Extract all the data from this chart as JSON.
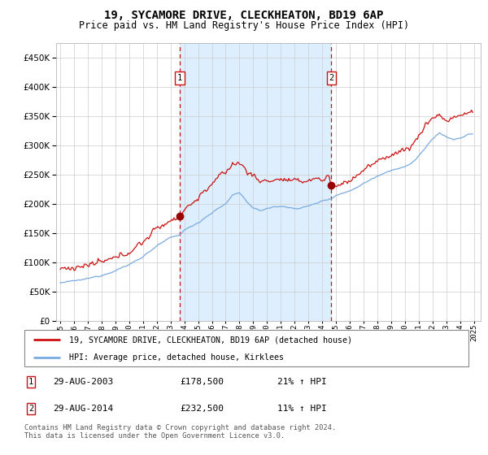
{
  "title": "19, SYCAMORE DRIVE, CLECKHEATON, BD19 6AP",
  "subtitle": "Price paid vs. HM Land Registry's House Price Index (HPI)",
  "legend_line1": "19, SYCAMORE DRIVE, CLECKHEATON, BD19 6AP (detached house)",
  "legend_line2": "HPI: Average price, detached house, Kirklees",
  "transaction1_date": "29-AUG-2003",
  "transaction1_price": "£178,500",
  "transaction1_hpi": "21% ↑ HPI",
  "transaction2_date": "29-AUG-2014",
  "transaction2_price": "£232,500",
  "transaction2_hpi": "11% ↑ HPI",
  "footer": "Contains HM Land Registry data © Crown copyright and database right 2024.\nThis data is licensed under the Open Government Licence v3.0.",
  "hpi_line_color": "#7aabde",
  "price_line_color": "#cc1111",
  "marker_color": "#990000",
  "vline_color": "#cc1111",
  "bg_shade_color": "#ddeeff",
  "grid_color": "#cccccc",
  "ylim": [
    0,
    475000
  ],
  "yticks": [
    0,
    50000,
    100000,
    150000,
    200000,
    250000,
    300000,
    350000,
    400000,
    450000
  ],
  "transaction1_x": 2003.66,
  "transaction2_x": 2014.66,
  "transaction1_price_val": 178500,
  "transaction2_price_val": 232500,
  "transaction1_hpi_val": 147520,
  "transaction2_hpi_val": 209500
}
